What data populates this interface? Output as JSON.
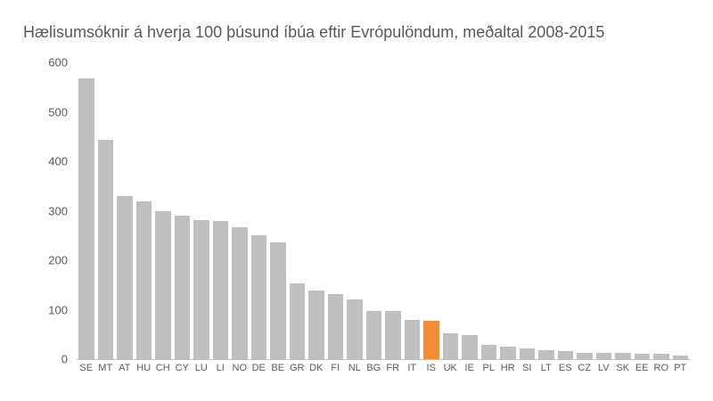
{
  "chart_data": {
    "type": "bar",
    "title": "Hælisumsóknir á hverja 100 þúsund íbúa eftir Evrópulöndum, meðaltal 2008-2015",
    "xlabel": "",
    "ylabel": "",
    "ylim": [
      0,
      600
    ],
    "yticks": [
      0,
      100,
      200,
      300,
      400,
      500,
      600
    ],
    "grid": false,
    "legend": null,
    "categories": [
      "SE",
      "MT",
      "AT",
      "HU",
      "CH",
      "CY",
      "LU",
      "LI",
      "NO",
      "DE",
      "BE",
      "GR",
      "DK",
      "FI",
      "NL",
      "BG",
      "FR",
      "IT",
      "IS",
      "UK",
      "IE",
      "PL",
      "HR",
      "SI",
      "LT",
      "ES",
      "CZ",
      "LV",
      "SK",
      "EE",
      "RO",
      "PT"
    ],
    "values": [
      567,
      443,
      330,
      319,
      299,
      290,
      281,
      280,
      267,
      250,
      236,
      153,
      139,
      132,
      121,
      97,
      97,
      79,
      77,
      52,
      48,
      29,
      25,
      22,
      18,
      16,
      13,
      13,
      12,
      10,
      10,
      7
    ],
    "highlight": "IS",
    "colors": {
      "default": "#bfbfbf",
      "highlight": "#f28c35"
    }
  }
}
